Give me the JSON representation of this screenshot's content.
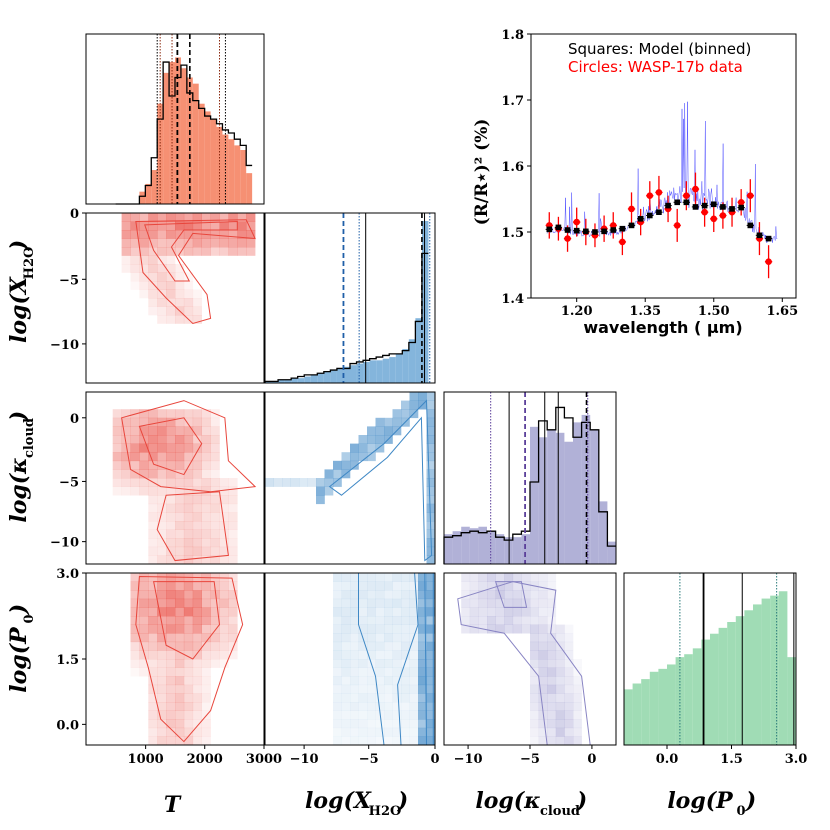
{
  "chart_data": [
    {
      "type": "bar",
      "panel": "hist-T",
      "title": "",
      "xlim": [
        0,
        3000
      ],
      "bins_start": 500,
      "bin_width": 100,
      "filled_values": [
        0,
        0,
        0,
        0,
        0.08,
        0.13,
        0.22,
        0.65,
        0.85,
        0.92,
        0.95,
        0.88,
        0.82,
        0.78,
        0.65,
        0.6,
        0.55,
        0.5,
        0.45,
        0.42,
        0.38,
        0.35,
        0.2
      ],
      "model_values": [
        0,
        0,
        0,
        0,
        0.05,
        0.12,
        0.3,
        0.55,
        0.92,
        0.7,
        0.82,
        0.9,
        0.72,
        0.67,
        0.62,
        0.57,
        0.55,
        0.52,
        0.48,
        0.46,
        0.42,
        0.38,
        0.25
      ],
      "vlines": {
        "true": 1540,
        "median": 1750,
        "ci_low": 1200,
        "ci_high": 2350,
        "extra": [
          1250,
          1450,
          2250
        ]
      },
      "color": "#f47c5a"
    },
    {
      "type": "bar",
      "panel": "hist-logXH2O",
      "xlim": [
        -13,
        0
      ],
      "bins_start": -13,
      "bin_width": 0.5,
      "filled_values": [
        0.01,
        0.01,
        0.02,
        0.02,
        0.03,
        0.03,
        0.04,
        0.05,
        0.06,
        0.07,
        0.08,
        0.09,
        0.1,
        0.11,
        0.12,
        0.13,
        0.14,
        0.14,
        0.15,
        0.16,
        0.18,
        0.21,
        0.27,
        0.4,
        1.0
      ],
      "model_values": [
        0.01,
        0.01,
        0.02,
        0.02,
        0.03,
        0.04,
        0.05,
        0.05,
        0.06,
        0.07,
        0.08,
        0.09,
        0.09,
        0.12,
        0.13,
        0.14,
        0.15,
        0.16,
        0.17,
        0.18,
        0.18,
        0.2,
        0.25,
        0.38,
        0.8
      ],
      "vlines": {
        "true": -7.0,
        "median": -1.0,
        "ci_low": -5.8,
        "ci_high": -0.4,
        "extra": [
          -5.3,
          -0.8
        ]
      },
      "color": "#6fa8d6"
    },
    {
      "type": "bar",
      "panel": "hist-logkappa",
      "xlim": [
        -12,
        2
      ],
      "bins_start": -12,
      "bin_width": 0.7,
      "filled_values": [
        0.2,
        0.22,
        0.25,
        0.24,
        0.25,
        0.22,
        0.2,
        0.18,
        0.18,
        0.2,
        0.92,
        0.85,
        0.9,
        0.88,
        0.82,
        0.95,
        1.0,
        0.9,
        0.42,
        0.15
      ],
      "model_values": [
        0.18,
        0.19,
        0.21,
        0.22,
        0.21,
        0.22,
        0.18,
        0.16,
        0.2,
        0.22,
        0.55,
        0.96,
        0.9,
        1.05,
        0.98,
        0.85,
        0.95,
        0.9,
        0.35,
        0.12
      ],
      "vlines": {
        "true": -5.4,
        "median": -0.4,
        "ci_low": -8.2,
        "ci_high": -0.3,
        "extra": [
          -6.7,
          -3.8,
          -2.7
        ]
      },
      "color": "#a3a3d0"
    },
    {
      "type": "bar",
      "panel": "hist-logP0",
      "xlim": [
        -1,
        3
      ],
      "bins_start": -1,
      "bin_width": 0.2,
      "filled_values": [
        0.38,
        0.42,
        0.45,
        0.5,
        0.52,
        0.55,
        0.6,
        0.62,
        0.66,
        0.72,
        0.76,
        0.8,
        0.84,
        0.88,
        0.92,
        0.96,
        1.0,
        1.02,
        1.05,
        0.6
      ],
      "vlines": {
        "true": 0.85,
        "ci_low": 0.3,
        "ci_high": 2.55,
        "extra": [
          1.75,
          2.95
        ]
      },
      "color": "#8fd6a8"
    },
    {
      "type": "line",
      "panel": "spectrum",
      "title": "",
      "xlabel": "wavelength ( μm)",
      "ylabel": "(R/R⋆)² (%)",
      "xlim": [
        1.1,
        1.68
      ],
      "ylim": [
        1.4,
        1.8
      ],
      "xticks": [
        "1.20",
        "1.35",
        "1.50",
        "1.65"
      ],
      "yticks": [
        "1.4",
        "1.5",
        "1.6",
        "1.7",
        "1.8"
      ],
      "legend": {
        "line1": "Squares: Model (binned)",
        "line2": "Circles: WASP-17b data"
      },
      "series": [
        {
          "name": "Model (binned)",
          "x": [
            1.14,
            1.16,
            1.18,
            1.2,
            1.22,
            1.24,
            1.26,
            1.28,
            1.3,
            1.32,
            1.34,
            1.36,
            1.38,
            1.4,
            1.42,
            1.44,
            1.46,
            1.48,
            1.5,
            1.52,
            1.54,
            1.56,
            1.58,
            1.6,
            1.62
          ],
          "y": [
            1.504,
            1.507,
            1.503,
            1.502,
            1.501,
            1.5,
            1.501,
            1.503,
            1.505,
            1.51,
            1.52,
            1.525,
            1.53,
            1.54,
            1.545,
            1.545,
            1.538,
            1.54,
            1.542,
            1.538,
            1.535,
            1.537,
            1.51,
            1.495,
            1.49
          ],
          "color": "#000000"
        },
        {
          "name": "WASP-17b data",
          "x": [
            1.14,
            1.16,
            1.18,
            1.2,
            1.22,
            1.24,
            1.26,
            1.28,
            1.3,
            1.32,
            1.34,
            1.36,
            1.38,
            1.4,
            1.42,
            1.44,
            1.46,
            1.48,
            1.5,
            1.52,
            1.54,
            1.56,
            1.58,
            1.6,
            1.62
          ],
          "y": [
            1.51,
            1.505,
            1.49,
            1.515,
            1.5,
            1.495,
            1.505,
            1.51,
            1.485,
            1.535,
            1.515,
            1.555,
            1.56,
            1.535,
            1.51,
            1.555,
            1.565,
            1.53,
            1.52,
            1.525,
            1.53,
            1.545,
            1.555,
            1.49,
            1.455
          ],
          "yerr": [
            0.02,
            0.018,
            0.02,
            0.022,
            0.02,
            0.018,
            0.02,
            0.02,
            0.02,
            0.025,
            0.02,
            0.022,
            0.025,
            0.02,
            0.025,
            0.022,
            0.025,
            0.022,
            0.02,
            0.02,
            0.022,
            0.02,
            0.025,
            0.025,
            0.025
          ],
          "color": "#ff0000"
        }
      ]
    }
  ],
  "axis_labels": {
    "T": "T",
    "logXH2O": "log(X",
    "logXH2O_sub": "H2O",
    "logkappa": "log(κ",
    "logkappa_sub": "cloud",
    "logP0": "log(P",
    "logP0_sub": "0"
  },
  "ticks": {
    "T_x": [
      "1000",
      "2000",
      "3000"
    ],
    "X_x": [
      "−10",
      "−5",
      "0"
    ],
    "K_x": [
      "−10",
      "−5",
      "0"
    ],
    "P_x": [
      "0.0",
      "1.5",
      "3.0"
    ],
    "X_y": [
      "0",
      "−5",
      "−10"
    ],
    "K_y": [
      "0",
      "−5",
      "−10"
    ],
    "P_y": [
      "3.0",
      "1.5",
      "0.0"
    ]
  },
  "colors": {
    "red": "#e8463c",
    "blue": "#3f88c5",
    "purple": "#8884c3",
    "green": "#7fcf9a",
    "model": "#2222ff"
  }
}
